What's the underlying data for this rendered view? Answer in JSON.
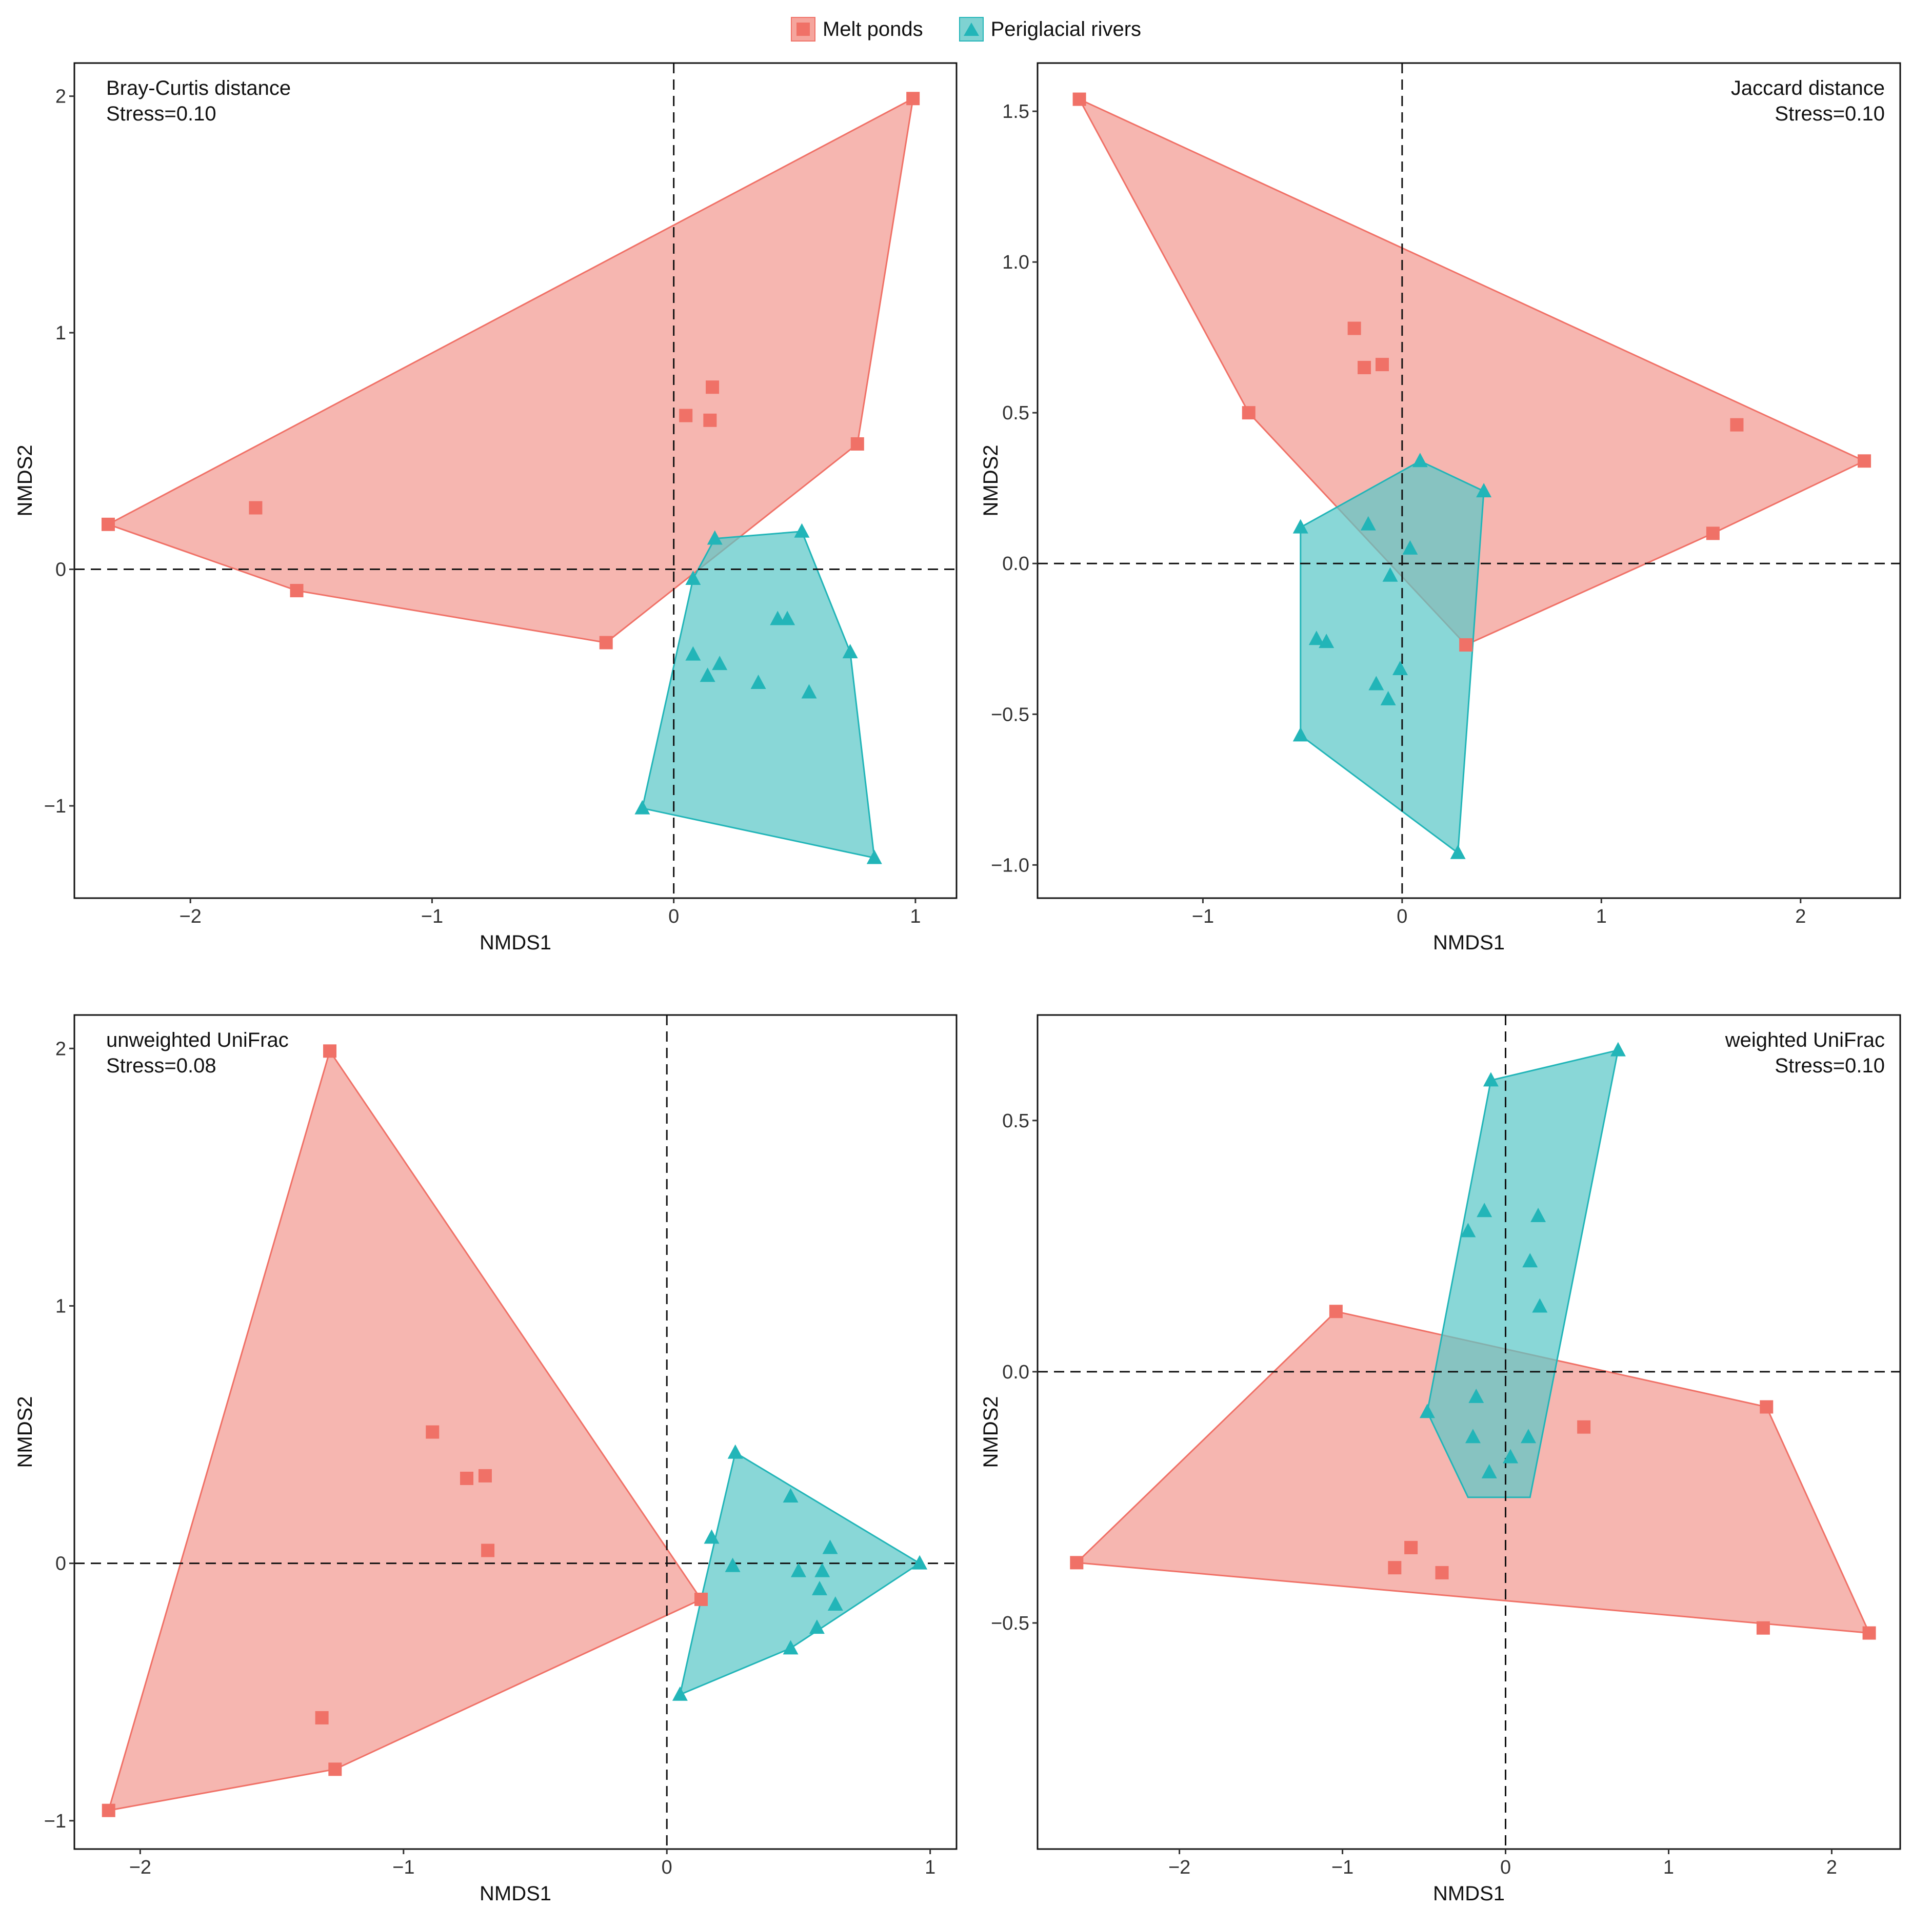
{
  "legend": {
    "items": [
      {
        "label": "Melt ponds",
        "color": "#F07167",
        "fill": "#F5A59D",
        "shape": "square"
      },
      {
        "label": "Periglacial rivers",
        "color": "#22B5B8",
        "fill": "#7FD2D2",
        "shape": "triangle"
      }
    ]
  },
  "colors": {
    "melt_stroke": "#F07167",
    "melt_fill": "#F29A91",
    "river_stroke": "#22B5B8",
    "river_fill": "#5CC8C8",
    "overlap_point": "#9A9A9A"
  },
  "chart_data": [
    {
      "type": "scatter",
      "title": "Bray-Curtis distance",
      "stress_label": "Stress=0.10",
      "annotation_align": "left",
      "xlabel": "NMDS1",
      "ylabel": "NMDS2",
      "xlim": [
        -2.48,
        1.17
      ],
      "ylim": [
        -1.39,
        2.14
      ],
      "xticks": [
        {
          "value": -2,
          "label": "−2"
        },
        {
          "value": -1,
          "label": "−1"
        },
        {
          "value": 0,
          "label": "0"
        },
        {
          "value": 1,
          "label": "1"
        }
      ],
      "yticks": [
        {
          "value": -1,
          "label": "−1"
        },
        {
          "value": 0,
          "label": "0"
        },
        {
          "value": 1,
          "label": "1"
        },
        {
          "value": 2,
          "label": "2"
        }
      ],
      "series": [
        {
          "name": "Melt ponds",
          "points": [
            [
              0.99,
              1.99
            ],
            [
              0.76,
              0.53
            ],
            [
              0.16,
              0.77
            ],
            [
              0.15,
              0.63
            ],
            [
              0.05,
              0.65
            ],
            [
              -1.73,
              0.26
            ],
            [
              -2.34,
              0.19
            ],
            [
              -1.56,
              -0.09
            ],
            [
              -0.28,
              -0.31
            ]
          ],
          "hull": [
            [
              0.99,
              1.99
            ],
            [
              0.76,
              0.53
            ],
            [
              -0.28,
              -0.31
            ],
            [
              -1.56,
              -0.09
            ],
            [
              -2.34,
              0.19
            ]
          ]
        },
        {
          "name": "Periglacial rivers",
          "points": [
            [
              0.53,
              0.16
            ],
            [
              0.17,
              0.13
            ],
            [
              0.08,
              -0.04
            ],
            [
              0.08,
              -0.36
            ],
            [
              0.14,
              -0.45
            ],
            [
              0.19,
              -0.4
            ],
            [
              0.35,
              -0.48
            ],
            [
              0.43,
              -0.21
            ],
            [
              0.47,
              -0.21
            ],
            [
              0.56,
              -0.52
            ],
            [
              0.73,
              -0.35
            ],
            [
              0.83,
              -1.22
            ],
            [
              -0.13,
              -1.01
            ]
          ],
          "hull": [
            [
              0.17,
              0.13
            ],
            [
              0.53,
              0.16
            ],
            [
              0.73,
              -0.35
            ],
            [
              0.83,
              -1.22
            ],
            [
              -0.13,
              -1.01
            ],
            [
              0.08,
              -0.04
            ]
          ]
        }
      ]
    },
    {
      "type": "scatter",
      "title": "Jaccard distance",
      "stress_label": "Stress=0.10",
      "annotation_align": "right",
      "xlabel": "NMDS1",
      "ylabel": "NMDS2",
      "xlim": [
        -1.83,
        2.5
      ],
      "ylim": [
        -1.11,
        1.66
      ],
      "xticks": [
        {
          "value": -1,
          "label": "−1"
        },
        {
          "value": 0,
          "label": "0"
        },
        {
          "value": 1,
          "label": "1"
        },
        {
          "value": 2,
          "label": "2"
        }
      ],
      "yticks": [
        {
          "value": -1.0,
          "label": "−1.0"
        },
        {
          "value": -0.5,
          "label": "−0.5"
        },
        {
          "value": 0.0,
          "label": "0.0"
        },
        {
          "value": 0.5,
          "label": "0.5"
        },
        {
          "value": 1.0,
          "label": "1.0"
        },
        {
          "value": 1.5,
          "label": "1.5"
        }
      ],
      "series": [
        {
          "name": "Melt ponds",
          "points": [
            [
              -1.62,
              1.54
            ],
            [
              -0.77,
              0.5
            ],
            [
              -0.24,
              0.78
            ],
            [
              -0.19,
              0.65
            ],
            [
              -0.1,
              0.66
            ],
            [
              1.68,
              0.46
            ],
            [
              2.32,
              0.34
            ],
            [
              1.56,
              0.1
            ],
            [
              0.32,
              -0.27
            ]
          ],
          "hull": [
            [
              -1.62,
              1.54
            ],
            [
              2.32,
              0.34
            ],
            [
              1.56,
              0.1
            ],
            [
              0.32,
              -0.27
            ],
            [
              -0.77,
              0.5
            ]
          ]
        },
        {
          "name": "Periglacial rivers",
          "points": [
            [
              0.09,
              0.34
            ],
            [
              0.41,
              0.24
            ],
            [
              -0.51,
              0.12
            ],
            [
              -0.17,
              0.13
            ],
            [
              0.04,
              0.05
            ],
            [
              -0.06,
              -0.04
            ],
            [
              -0.43,
              -0.25
            ],
            [
              -0.38,
              -0.26
            ],
            [
              -0.01,
              -0.35
            ],
            [
              -0.13,
              -0.4
            ],
            [
              -0.07,
              -0.45
            ],
            [
              -0.51,
              -0.57
            ],
            [
              0.28,
              -0.96
            ]
          ],
          "hull": [
            [
              0.09,
              0.34
            ],
            [
              0.41,
              0.24
            ],
            [
              0.28,
              -0.96
            ],
            [
              -0.51,
              -0.57
            ],
            [
              -0.51,
              0.12
            ]
          ]
        }
      ]
    },
    {
      "type": "scatter",
      "title": "unweighted UniFrac",
      "stress_label": "Stress=0.08",
      "annotation_align": "left",
      "xlabel": "NMDS1",
      "ylabel": "NMDS2",
      "xlim": [
        -2.25,
        1.1
      ],
      "ylim": [
        -1.11,
        2.13
      ],
      "xticks": [
        {
          "value": -2,
          "label": "−2"
        },
        {
          "value": -1,
          "label": "−1"
        },
        {
          "value": 0,
          "label": "0"
        },
        {
          "value": 1,
          "label": "1"
        }
      ],
      "yticks": [
        {
          "value": -1,
          "label": "−1"
        },
        {
          "value": 0,
          "label": "0"
        },
        {
          "value": 1,
          "label": "1"
        },
        {
          "value": 2,
          "label": "2"
        }
      ],
      "series": [
        {
          "name": "Melt ponds",
          "points": [
            [
              -1.28,
              1.99
            ],
            [
              -0.89,
              0.51
            ],
            [
              -0.76,
              0.33
            ],
            [
              -0.69,
              0.34
            ],
            [
              -0.68,
              0.05
            ],
            [
              -1.31,
              -0.6
            ],
            [
              -1.26,
              -0.8
            ],
            [
              -2.12,
              -0.96
            ],
            [
              0.13,
              -0.14
            ]
          ],
          "hull": [
            [
              -1.28,
              1.99
            ],
            [
              0.13,
              -0.14
            ],
            [
              -1.26,
              -0.8
            ],
            [
              -2.12,
              -0.96
            ]
          ]
        },
        {
          "name": "Periglacial rivers",
          "points": [
            [
              0.26,
              0.43
            ],
            [
              0.47,
              0.26
            ],
            [
              0.17,
              0.1
            ],
            [
              0.25,
              -0.01
            ],
            [
              0.62,
              0.06
            ],
            [
              0.5,
              -0.03
            ],
            [
              0.59,
              -0.03
            ],
            [
              0.58,
              -0.1
            ],
            [
              0.64,
              -0.16
            ],
            [
              0.57,
              -0.25
            ],
            [
              0.47,
              -0.33
            ],
            [
              0.05,
              -0.51
            ],
            [
              0.96,
              0.0
            ]
          ],
          "hull": [
            [
              0.26,
              0.43
            ],
            [
              0.96,
              0.0
            ],
            [
              0.47,
              -0.33
            ],
            [
              0.05,
              -0.51
            ],
            [
              0.13,
              -0.14
            ]
          ]
        }
      ]
    },
    {
      "type": "scatter",
      "title": "weighted UniFrac",
      "stress_label": "Stress=0.10",
      "annotation_align": "right",
      "xlabel": "NMDS1",
      "ylabel": "NMDS2",
      "xlim": [
        -2.87,
        2.42
      ],
      "ylim": [
        -0.95,
        0.71
      ],
      "xticks": [
        {
          "value": -2,
          "label": "−2"
        },
        {
          "value": -1,
          "label": "−1"
        },
        {
          "value": 0,
          "label": "0"
        },
        {
          "value": 1,
          "label": "1"
        },
        {
          "value": 2,
          "label": "2"
        }
      ],
      "yticks": [
        {
          "value": -0.5,
          "label": "−0.5"
        },
        {
          "value": 0.0,
          "label": "0.0"
        },
        {
          "value": 0.5,
          "label": "0.5"
        }
      ],
      "series": [
        {
          "name": "Melt ponds",
          "points": [
            [
              -1.04,
              0.12
            ],
            [
              1.6,
              -0.07
            ],
            [
              0.48,
              -0.11
            ],
            [
              -0.58,
              -0.35
            ],
            [
              -0.68,
              -0.39
            ],
            [
              -0.39,
              -0.4
            ],
            [
              -2.63,
              -0.38
            ],
            [
              1.58,
              -0.51
            ],
            [
              2.23,
              -0.52
            ]
          ],
          "hull": [
            [
              -1.04,
              0.12
            ],
            [
              1.6,
              -0.07
            ],
            [
              2.23,
              -0.52
            ],
            [
              -2.63,
              -0.38
            ]
          ]
        },
        {
          "name": "Periglacial rivers",
          "points": [
            [
              0.69,
              0.64
            ],
            [
              -0.09,
              0.58
            ],
            [
              -0.13,
              0.32
            ],
            [
              0.2,
              0.31
            ],
            [
              -0.23,
              0.28
            ],
            [
              0.15,
              0.22
            ],
            [
              0.21,
              0.13
            ],
            [
              -0.18,
              -0.05
            ],
            [
              -0.48,
              -0.08
            ],
            [
              -0.2,
              -0.13
            ],
            [
              0.14,
              -0.13
            ],
            [
              0.03,
              -0.17
            ],
            [
              -0.1,
              -0.2
            ]
          ],
          "hull": [
            [
              -0.09,
              0.58
            ],
            [
              0.69,
              0.64
            ],
            [
              0.15,
              -0.25
            ],
            [
              -0.23,
              -0.25
            ],
            [
              -0.48,
              -0.08
            ]
          ]
        }
      ]
    }
  ]
}
